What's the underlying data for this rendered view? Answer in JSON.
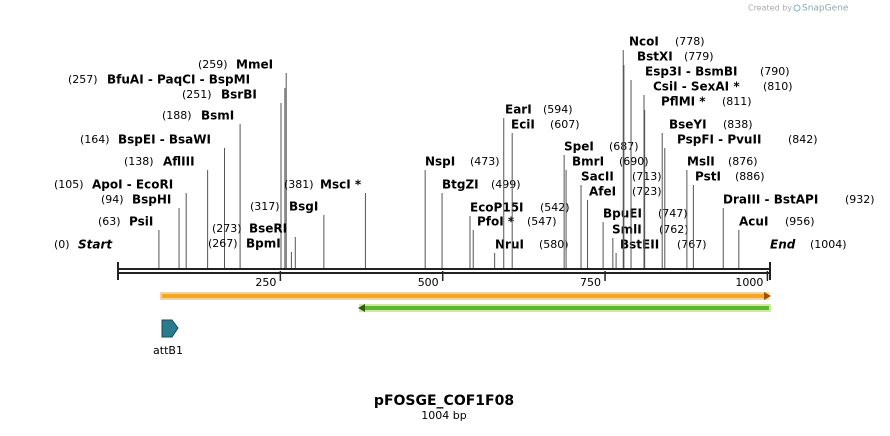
{
  "credit": {
    "prefix": "Created by",
    "brand": "SnapGene"
  },
  "map": {
    "name": "pFOSGE_COF1F08",
    "size": {
      "value": 1004,
      "label": "1004 bp"
    }
  },
  "ruler": {
    "ticks": [
      250,
      500,
      750,
      1000
    ]
  },
  "features": [
    {
      "label": "attB1"
    }
  ],
  "sites": [
    {
      "label": "MmeI",
      "position": {
        "value": 259,
        "label": "(259)"
      }
    },
    {
      "label": "BfuAI  - PaqCI  - BspMI",
      "position": {
        "value": 257,
        "label": "(257)"
      }
    },
    {
      "label": "BsrBI",
      "position": {
        "value": 251,
        "label": "(251)"
      }
    },
    {
      "label": "BsmI",
      "position": {
        "value": 188,
        "label": "(188)"
      }
    },
    {
      "label": "BspEI  - BsaWI",
      "position": {
        "value": 164,
        "label": "(164)"
      }
    },
    {
      "label": "AflIII",
      "position": {
        "value": 138,
        "label": "(138)"
      }
    },
    {
      "label": "ApoI  - EcoRI",
      "position": {
        "value": 105,
        "label": "(105)"
      }
    },
    {
      "label": "BspHI",
      "position": {
        "value": 94,
        "label": "(94)"
      }
    },
    {
      "label": "PsiI",
      "position": {
        "value": 63,
        "label": "(63)"
      }
    },
    {
      "label": "Start",
      "position": {
        "value": 0,
        "label": "(0)"
      }
    },
    {
      "label": "BseRI",
      "position": {
        "value": 273,
        "label": "(273)"
      }
    },
    {
      "label": "BpmI",
      "position": {
        "value": 267,
        "label": "(267)"
      }
    },
    {
      "label": "BsgI",
      "position": {
        "value": 317,
        "label": "(317)"
      }
    },
    {
      "label": "MscI *",
      "position": {
        "value": 381,
        "label": "(381)"
      }
    },
    {
      "label": "NspI",
      "position": {
        "value": 473,
        "label": "(473)"
      }
    },
    {
      "label": "BtgZI",
      "position": {
        "value": 499,
        "label": "(499)"
      }
    },
    {
      "label": "EcoP15I",
      "position": {
        "value": 542,
        "label": "(542)"
      }
    },
    {
      "label": "PfoI *",
      "position": {
        "value": 547,
        "label": "(547)"
      }
    },
    {
      "label": "NruI",
      "position": {
        "value": 580,
        "label": "(580)"
      }
    },
    {
      "label": "EarI",
      "position": {
        "value": 594,
        "label": "(594)"
      }
    },
    {
      "label": "EciI",
      "position": {
        "value": 607,
        "label": "(607)"
      }
    },
    {
      "label": "SpeI",
      "position": {
        "value": 687,
        "label": "(687)"
      }
    },
    {
      "label": "BmrI",
      "position": {
        "value": 690,
        "label": "(690)"
      }
    },
    {
      "label": "SacII",
      "position": {
        "value": 713,
        "label": "(713)"
      }
    },
    {
      "label": "AfeI",
      "position": {
        "value": 723,
        "label": "(723)"
      }
    },
    {
      "label": "BpuEI",
      "position": {
        "value": 747,
        "label": "(747)"
      }
    },
    {
      "label": "SmlI",
      "position": {
        "value": 762,
        "label": "(762)"
      }
    },
    {
      "label": "BstEII",
      "position": {
        "value": 767,
        "label": "(767)"
      }
    },
    {
      "label": "NcoI",
      "position": {
        "value": 778,
        "label": "(778)"
      }
    },
    {
      "label": "BstXI",
      "position": {
        "value": 779,
        "label": "(779)"
      }
    },
    {
      "label": "Esp3I  - BsmBI",
      "position": {
        "value": 790,
        "label": "(790)"
      }
    },
    {
      "label": "CsiI  - SexAI *",
      "position": {
        "value": 810,
        "label": "(810)"
      }
    },
    {
      "label": "PflMI *",
      "position": {
        "value": 811,
        "label": "(811)"
      }
    },
    {
      "label": "BseYI",
      "position": {
        "value": 838,
        "label": "(838)"
      }
    },
    {
      "label": "PspFI  - PvuII",
      "position": {
        "value": 842,
        "label": "(842)"
      }
    },
    {
      "label": "MslI",
      "position": {
        "value": 876,
        "label": "(876)"
      }
    },
    {
      "label": "PstI",
      "position": {
        "value": 886,
        "label": "(886)"
      }
    },
    {
      "label": "DraIII  - BstAPI",
      "position": {
        "value": 932,
        "label": "(932)"
      }
    },
    {
      "label": "AcuI",
      "position": {
        "value": 956,
        "label": "(956)"
      }
    },
    {
      "label": "End",
      "position": {
        "value": 1004,
        "label": "(1004)"
      }
    }
  ]
}
